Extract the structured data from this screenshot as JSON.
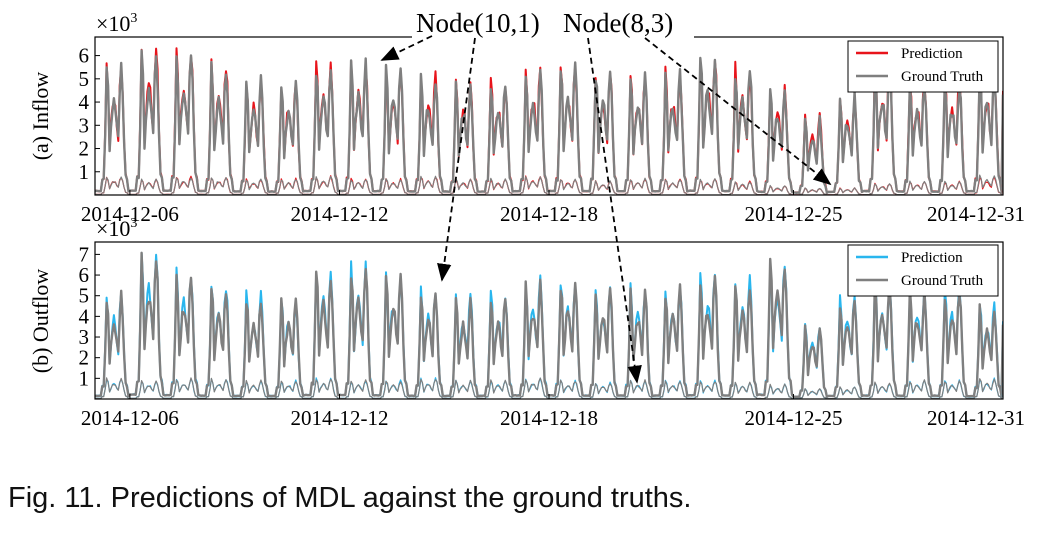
{
  "annotations": {
    "node_a": "Node(10,1)",
    "node_b": "Node(8,3)"
  },
  "caption": "Fig. 11. Predictions of MDL against the ground truths.",
  "colors": {
    "inflow_prediction": "#e8141b",
    "outflow_prediction": "#29b6ee",
    "ground_truth": "#7f7f7f"
  },
  "chart_data": [
    {
      "type": "line",
      "panel": "inflow",
      "ylabel": "(a) Inflow",
      "scale_label": "×10",
      "scale_exp": "3",
      "yticks": [
        1,
        2,
        3,
        4,
        5,
        6
      ],
      "ylim": [
        0,
        6.8
      ],
      "xlim": [
        "2014-12-05",
        "2014-12-31"
      ],
      "xticks": [
        "2014-12-06",
        "2014-12-12",
        "2014-12-18",
        "2014-12-25",
        "2014-12-31"
      ],
      "x_days": [
        "2014-12-05",
        "2014-12-06",
        "2014-12-07",
        "2014-12-08",
        "2014-12-09",
        "2014-12-10",
        "2014-12-11",
        "2014-12-12",
        "2014-12-13",
        "2014-12-14",
        "2014-12-15",
        "2014-12-16",
        "2014-12-17",
        "2014-12-18",
        "2014-12-19",
        "2014-12-20",
        "2014-12-21",
        "2014-12-22",
        "2014-12-23",
        "2014-12-24",
        "2014-12-25",
        "2014-12-26",
        "2014-12-27",
        "2014-12-28",
        "2014-12-29",
        "2014-12-30",
        "2014-12-31"
      ],
      "legend": [
        "Prediction",
        "Ground Truth"
      ],
      "legend_position": "top-right",
      "grid": false,
      "series": [
        {
          "name": "Prediction",
          "node": "Node(10,1)",
          "daily_peak": [
            0.4,
            5.8,
            6.6,
            6.4,
            5.8,
            5.2,
            5.0,
            5.8,
            5.9,
            5.6,
            5.3,
            5.0,
            5.1,
            5.6,
            5.7,
            5.6,
            5.4,
            5.4,
            6.2,
            5.6,
            4.8,
            3.5,
            4.5,
            5.8,
            5.2,
            5.2,
            5.6
          ]
        },
        {
          "name": "Ground Truth",
          "node": "Node(10,1)",
          "daily_peak": [
            0.4,
            5.7,
            6.2,
            6.2,
            5.6,
            5.1,
            4.9,
            5.7,
            5.8,
            5.5,
            5.2,
            4.9,
            5.0,
            5.5,
            5.6,
            5.5,
            5.3,
            5.3,
            6.1,
            5.5,
            4.6,
            3.3,
            4.3,
            5.6,
            5.0,
            5.0,
            5.4
          ]
        },
        {
          "name": "Prediction",
          "node": "Node(8,3)",
          "daily_peak": [
            0.8,
            0.8,
            0.7,
            0.8,
            0.8,
            0.7,
            0.7,
            0.8,
            0.7,
            0.7,
            0.8,
            0.7,
            0.7,
            0.8,
            0.7,
            0.6,
            0.7,
            0.7,
            0.7,
            0.6,
            0.4,
            0.3,
            0.3,
            0.5,
            0.6,
            0.6,
            0.8
          ]
        },
        {
          "name": "Ground Truth",
          "node": "Node(8,3)",
          "daily_peak": [
            0.8,
            0.8,
            0.7,
            0.8,
            0.8,
            0.7,
            0.7,
            0.8,
            0.7,
            0.7,
            0.8,
            0.7,
            0.7,
            0.8,
            0.7,
            0.6,
            0.7,
            0.7,
            0.7,
            0.6,
            0.4,
            0.3,
            0.3,
            0.5,
            0.6,
            0.6,
            0.9
          ]
        }
      ]
    },
    {
      "type": "line",
      "panel": "outflow",
      "ylabel": "(b) Outflow",
      "scale_label": "×10",
      "scale_exp": "3",
      "yticks": [
        1,
        2,
        3,
        4,
        5,
        6,
        7
      ],
      "ylim": [
        0,
        7.6
      ],
      "xlim": [
        "2014-12-05",
        "2014-12-31"
      ],
      "xticks": [
        "2014-12-06",
        "2014-12-12",
        "2014-12-18",
        "2014-12-25",
        "2014-12-31"
      ],
      "x_days": [
        "2014-12-05",
        "2014-12-06",
        "2014-12-07",
        "2014-12-08",
        "2014-12-09",
        "2014-12-10",
        "2014-12-11",
        "2014-12-12",
        "2014-12-13",
        "2014-12-14",
        "2014-12-15",
        "2014-12-16",
        "2014-12-17",
        "2014-12-18",
        "2014-12-19",
        "2014-12-20",
        "2014-12-21",
        "2014-12-22",
        "2014-12-23",
        "2014-12-24",
        "2014-12-25",
        "2014-12-26",
        "2014-12-27",
        "2014-12-28",
        "2014-12-29",
        "2014-12-30",
        "2014-12-31"
      ],
      "legend": [
        "Prediction",
        "Ground Truth"
      ],
      "legend_position": "top-right",
      "grid": false,
      "series": [
        {
          "name": "Prediction",
          "node": "Node(10,1)",
          "daily_peak": [
            0.4,
            5.3,
            7.4,
            6.4,
            5.7,
            5.2,
            5.0,
            6.5,
            6.5,
            6.2,
            5.4,
            5.1,
            5.3,
            5.9,
            6.0,
            5.6,
            5.5,
            5.6,
            6.2,
            5.8,
            7.0,
            3.7,
            5.1,
            5.8,
            5.5,
            5.5,
            4.7
          ]
        },
        {
          "name": "Ground Truth",
          "node": "Node(10,1)",
          "daily_peak": [
            0.4,
            5.1,
            7.0,
            6.2,
            5.5,
            5.0,
            4.9,
            6.3,
            6.4,
            6.1,
            5.2,
            4.9,
            5.1,
            5.7,
            5.8,
            5.4,
            5.3,
            5.4,
            6.0,
            5.6,
            6.9,
            3.6,
            4.9,
            5.6,
            5.3,
            5.3,
            4.5
          ]
        },
        {
          "name": "Prediction",
          "node": "Node(8,3)",
          "daily_peak": [
            0.9,
            1.0,
            0.9,
            1.0,
            1.0,
            0.9,
            0.9,
            1.0,
            0.9,
            0.9,
            1.0,
            0.9,
            0.9,
            1.0,
            0.9,
            0.8,
            0.9,
            0.9,
            0.9,
            0.8,
            0.7,
            0.5,
            0.6,
            0.8,
            0.9,
            0.9,
            1.0
          ]
        },
        {
          "name": "Ground Truth",
          "node": "Node(8,3)",
          "daily_peak": [
            0.9,
            1.0,
            0.9,
            1.0,
            1.0,
            0.9,
            0.9,
            1.0,
            0.9,
            0.9,
            1.0,
            0.9,
            0.9,
            1.0,
            0.9,
            0.8,
            0.9,
            0.9,
            0.9,
            0.8,
            0.7,
            0.5,
            0.6,
            0.8,
            0.9,
            0.9,
            1.0
          ]
        }
      ]
    }
  ]
}
